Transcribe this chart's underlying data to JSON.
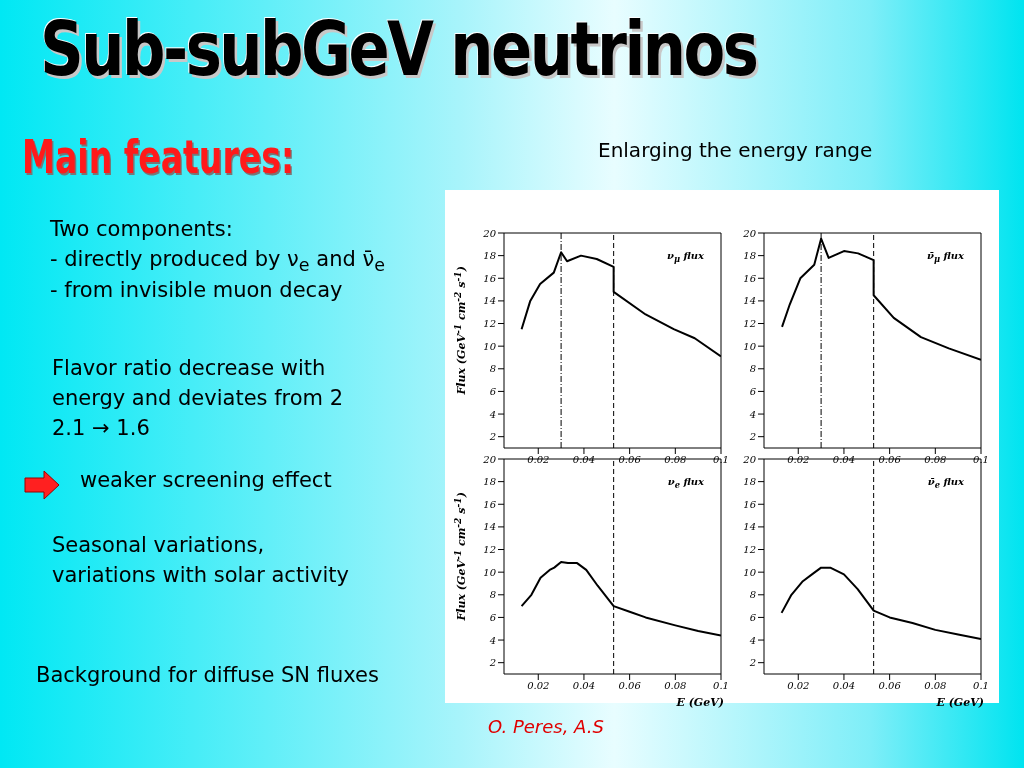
{
  "chart_data": [
    {
      "type": "other",
      "title": "Sub-subGeV neutrinos",
      "subtitle": "Main features:",
      "annotations": [
        "Enlarging the energy range",
        "Two components:",
        "- directly produced by ν$_{e}$ and ν̄$_{e}$",
        "- from invisible muon decay",
        "Flavor ratio decrease with",
        "energy and deviates from 2",
        "2.1 → 1.6",
        "weaker screening effect",
        "Seasonal variations,",
        "variations with solar activity",
        "Background for diffuse SN fluxes",
        "O. Peres, A.S"
      ]
    },
    {
      "type": "line",
      "ylabel": "Flux (GeV$^{-1}$ cm$^{-2}$ s$^{-1}$)",
      "annotations": [
        "ν$_{μ}$ flux"
      ],
      "marker": "none",
      "line_style": "solid",
      "xlim": [
        0.005,
        0.1
      ],
      "xticks": [
        0.02,
        0.04,
        0.06,
        0.08,
        0.1
      ],
      "ylim": [
        1,
        20
      ],
      "yticks": [
        2,
        4,
        6,
        8,
        10,
        12,
        14,
        16,
        18,
        20
      ],
      "ref_lines": [
        {
          "axis": "x",
          "value": 0.03,
          "line_style": "dotted"
        },
        {
          "axis": "x",
          "value": 0.053,
          "line_style": "dashed"
        }
      ],
      "series": [
        {
          "color": "#000000",
          "x": [
            0.0127,
            0.0165,
            0.0208,
            0.0268,
            0.03,
            0.0326,
            0.0387,
            0.0456,
            0.053,
            0.053,
            0.067,
            0.0793,
            0.0885,
            0.1
          ],
          "values": [
            11.5,
            14.0,
            15.5,
            16.5,
            18.3,
            17.5,
            18.0,
            17.7,
            17.0,
            14.8,
            12.8,
            11.5,
            10.7,
            9.1
          ]
        }
      ]
    },
    {
      "type": "line",
      "annotations": [
        "ν̄$_{μ}$ flux"
      ],
      "marker": "none",
      "line_style": "solid",
      "xlim": [
        0.005,
        0.1
      ],
      "xticks": [
        0.02,
        0.04,
        0.06,
        0.08,
        0.1
      ],
      "ylim": [
        1,
        20
      ],
      "yticks": [
        2,
        4,
        6,
        8,
        10,
        12,
        14,
        16,
        18,
        20
      ],
      "ref_lines": [
        {
          "axis": "x",
          "value": 0.03,
          "line_style": "dotted"
        },
        {
          "axis": "x",
          "value": 0.053,
          "line_style": "dashed"
        }
      ],
      "series": [
        {
          "color": "#000000",
          "x": [
            0.0129,
            0.0163,
            0.0209,
            0.027,
            0.03,
            0.0333,
            0.04,
            0.0462,
            0.053,
            0.053,
            0.0618,
            0.0737,
            0.0859,
            0.1
          ],
          "values": [
            11.7,
            13.7,
            16.0,
            17.2,
            19.5,
            17.8,
            18.4,
            18.2,
            17.6,
            14.5,
            12.5,
            10.8,
            9.8,
            8.8
          ]
        }
      ]
    },
    {
      "type": "line",
      "ylabel": "Flux (GeV$^{-1}$ cm$^{-2}$ s$^{-1}$)",
      "xlabel": "E (GeV)",
      "annotations": [
        "ν$_{e}$ flux"
      ],
      "marker": "none",
      "line_style": "solid",
      "xlim": [
        0.005,
        0.1
      ],
      "xticks": [
        0.02,
        0.04,
        0.06,
        0.08,
        0.1
      ],
      "ylim": [
        1,
        20
      ],
      "yticks": [
        2,
        4,
        6,
        8,
        10,
        12,
        14,
        16,
        18,
        20
      ],
      "ref_lines": [
        {
          "axis": "x",
          "value": 0.053,
          "line_style": "dashed"
        }
      ],
      "series": [
        {
          "color": "#000000",
          "x": [
            0.0127,
            0.017,
            0.021,
            0.025,
            0.027,
            0.03,
            0.033,
            0.037,
            0.041,
            0.046,
            0.053,
            0.06,
            0.067,
            0.08,
            0.09,
            0.1
          ],
          "values": [
            7.0,
            8.0,
            9.5,
            10.2,
            10.4,
            10.9,
            10.8,
            10.8,
            10.2,
            8.8,
            7.0,
            6.5,
            6.0,
            5.3,
            4.8,
            4.4
          ]
        }
      ]
    },
    {
      "type": "line",
      "xlabel": "E (GeV)",
      "annotations": [
        "ν̄$_{e}$ flux"
      ],
      "marker": "none",
      "line_style": "solid",
      "xlim": [
        0.005,
        0.1
      ],
      "xticks": [
        0.02,
        0.04,
        0.06,
        0.08,
        0.1
      ],
      "ylim": [
        1,
        20
      ],
      "yticks": [
        2,
        4,
        6,
        8,
        10,
        12,
        14,
        16,
        18,
        20
      ],
      "ref_lines": [
        {
          "axis": "x",
          "value": 0.053,
          "line_style": "dashed"
        }
      ],
      "series": [
        {
          "color": "#000000",
          "x": [
            0.0127,
            0.017,
            0.022,
            0.026,
            0.03,
            0.034,
            0.04,
            0.046,
            0.053,
            0.06,
            0.07,
            0.08,
            0.09,
            0.1
          ],
          "values": [
            6.4,
            8.0,
            9.2,
            9.8,
            10.4,
            10.4,
            9.8,
            8.5,
            6.6,
            6.0,
            5.5,
            4.9,
            4.5,
            4.1
          ]
        }
      ]
    }
  ]
}
